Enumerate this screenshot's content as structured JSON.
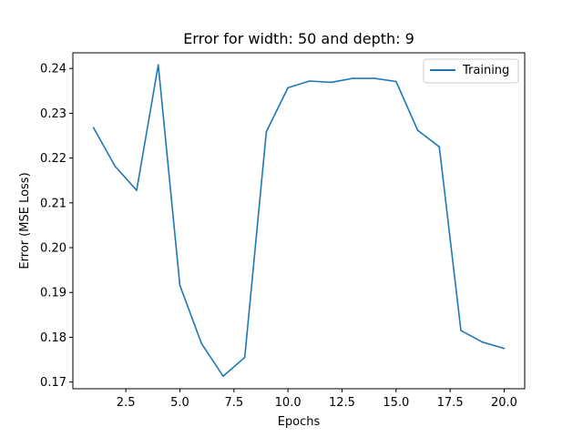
{
  "chart_data": {
    "type": "line",
    "title": "Error for width: 50 and depth: 9",
    "xlabel": "Epochs",
    "ylabel": "Error (MSE Loss)",
    "xlim": [
      0.05,
      20.95
    ],
    "ylim": [
      0.1685,
      0.2435
    ],
    "x_ticks": [
      2.5,
      5.0,
      7.5,
      10.0,
      12.5,
      15.0,
      17.5,
      20.0
    ],
    "x_tick_labels": [
      "2.5",
      "5.0",
      "7.5",
      "10.0",
      "12.5",
      "15.0",
      "17.5",
      "20.0"
    ],
    "y_ticks": [
      0.17,
      0.18,
      0.19,
      0.2,
      0.21,
      0.22,
      0.23,
      0.24
    ],
    "y_tick_labels": [
      "0.17",
      "0.18",
      "0.19",
      "0.20",
      "0.21",
      "0.22",
      "0.23",
      "0.24"
    ],
    "grid": false,
    "legend_position": "top-right",
    "series": [
      {
        "name": "Training",
        "color": "#1f77b4",
        "x": [
          1,
          2,
          3,
          4,
          5,
          6,
          7,
          8,
          9,
          10,
          11,
          12,
          13,
          14,
          15,
          16,
          17,
          18,
          19,
          20
        ],
        "y": [
          0.2268,
          0.2182,
          0.2128,
          0.2408,
          0.1916,
          0.1786,
          0.1713,
          0.1755,
          0.2259,
          0.2357,
          0.2372,
          0.2369,
          0.2378,
          0.2378,
          0.2371,
          0.2262,
          0.2225,
          0.1815,
          0.1789,
          0.1775
        ]
      }
    ]
  }
}
